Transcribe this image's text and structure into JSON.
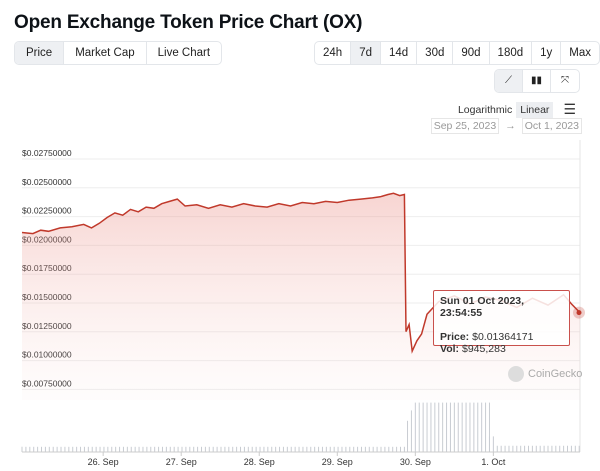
{
  "title": "Open Exchange Token Price Chart (OX)",
  "tabs": [
    {
      "label": "Price",
      "active": true
    },
    {
      "label": "Market Cap"
    },
    {
      "label": "Live Chart"
    }
  ],
  "ranges": [
    {
      "label": "24h"
    },
    {
      "label": "7d",
      "active": true
    },
    {
      "label": "14d"
    },
    {
      "label": "30d"
    },
    {
      "label": "90d"
    },
    {
      "label": "180d"
    },
    {
      "label": "1y"
    },
    {
      "label": "Max"
    }
  ],
  "chart_types": [
    {
      "icon": "line-chart-icon",
      "glyph": "⟋",
      "active": true
    },
    {
      "icon": "candlestick-icon",
      "glyph": "▮▮"
    },
    {
      "icon": "expand-icon",
      "glyph": "⤧"
    }
  ],
  "scale": {
    "log": "Logarithmic",
    "linear": "Linear",
    "menu_glyph": "☰"
  },
  "date_range": {
    "from": "Sep 25, 2023",
    "arrow": "→",
    "to": "Oct 1, 2023"
  },
  "tooltip": {
    "time": "Sun 01 Oct 2023, 23:54:55",
    "price_label": "Price:",
    "price": "$0.01364171",
    "vol_label": "Vol:",
    "vol": "$945,283"
  },
  "watermark": "CoinGecko",
  "colors": {
    "line": "#c0392b",
    "grid": "#eeeeee",
    "volume": "#c8ccd2"
  },
  "chart_data": {
    "type": "line",
    "y_ticks": [
      "$0.02750000",
      "$0.02500000",
      "$0.02250000",
      "$0.02000000",
      "$0.01750000",
      "$0.01500000",
      "$0.01250000",
      "$0.01000000",
      "$0.00750000"
    ],
    "y_tick_values": [
      0.0275,
      0.025,
      0.0225,
      0.02,
      0.0175,
      0.015,
      0.0125,
      0.01,
      0.0075
    ],
    "x_ticks": [
      "26. Sep",
      "27. Sep",
      "28. Sep",
      "29. Sep",
      "30. Sep",
      "1. Oct"
    ],
    "x_tick_days": [
      1,
      2,
      3,
      4,
      5,
      6
    ],
    "x_range_days": [
      -0.04,
      7.11
    ],
    "price": [
      [
        -0.04,
        0.0206
      ],
      [
        0.1,
        0.0205
      ],
      [
        0.2,
        0.0208
      ],
      [
        0.3,
        0.0207
      ],
      [
        0.45,
        0.021
      ],
      [
        0.6,
        0.0211
      ],
      [
        0.75,
        0.0213
      ],
      [
        0.85,
        0.021
      ],
      [
        0.95,
        0.0214
      ],
      [
        1.05,
        0.0219
      ],
      [
        1.15,
        0.0223
      ],
      [
        1.25,
        0.0221
      ],
      [
        1.35,
        0.0226
      ],
      [
        1.45,
        0.0224
      ],
      [
        1.55,
        0.0228
      ],
      [
        1.65,
        0.0227
      ],
      [
        1.75,
        0.0231
      ],
      [
        1.85,
        0.0233
      ],
      [
        1.95,
        0.0235
      ],
      [
        2.05,
        0.0229
      ],
      [
        2.2,
        0.023
      ],
      [
        2.35,
        0.0227
      ],
      [
        2.5,
        0.023
      ],
      [
        2.65,
        0.0228
      ],
      [
        2.8,
        0.0231
      ],
      [
        2.95,
        0.0229
      ],
      [
        3.1,
        0.0228
      ],
      [
        3.25,
        0.0231
      ],
      [
        3.4,
        0.0229
      ],
      [
        3.55,
        0.0232
      ],
      [
        3.7,
        0.0231
      ],
      [
        3.85,
        0.0233
      ],
      [
        4.0,
        0.0232
      ],
      [
        4.15,
        0.0234
      ],
      [
        4.3,
        0.0235
      ],
      [
        4.45,
        0.0236
      ],
      [
        4.55,
        0.0237
      ],
      [
        4.65,
        0.0239
      ],
      [
        4.72,
        0.024
      ],
      [
        4.8,
        0.0238
      ],
      [
        4.86,
        0.0239
      ],
      [
        4.88,
        0.012
      ],
      [
        4.92,
        0.0126
      ],
      [
        4.96,
        0.0103
      ],
      [
        5.02,
        0.0112
      ],
      [
        5.08,
        0.0118
      ],
      [
        5.15,
        0.0135
      ],
      [
        5.3,
        0.0146
      ],
      [
        5.5,
        0.0151
      ],
      [
        5.7,
        0.0144
      ],
      [
        5.9,
        0.015
      ],
      [
        6.1,
        0.0147
      ],
      [
        6.3,
        0.0141
      ],
      [
        6.5,
        0.0149
      ],
      [
        6.7,
        0.0143
      ],
      [
        6.9,
        0.0152
      ],
      [
        7.0,
        0.0144
      ],
      [
        7.11,
        0.01364
      ]
    ],
    "volume_segments": [
      [
        -0.04,
        4.9,
        0.1
      ],
      [
        4.9,
        4.95,
        0.6
      ],
      [
        4.95,
        5.0,
        0.8
      ],
      [
        5.0,
        5.95,
        0.95
      ],
      [
        5.95,
        6.05,
        0.3
      ],
      [
        6.05,
        7.11,
        0.12
      ]
    ]
  }
}
